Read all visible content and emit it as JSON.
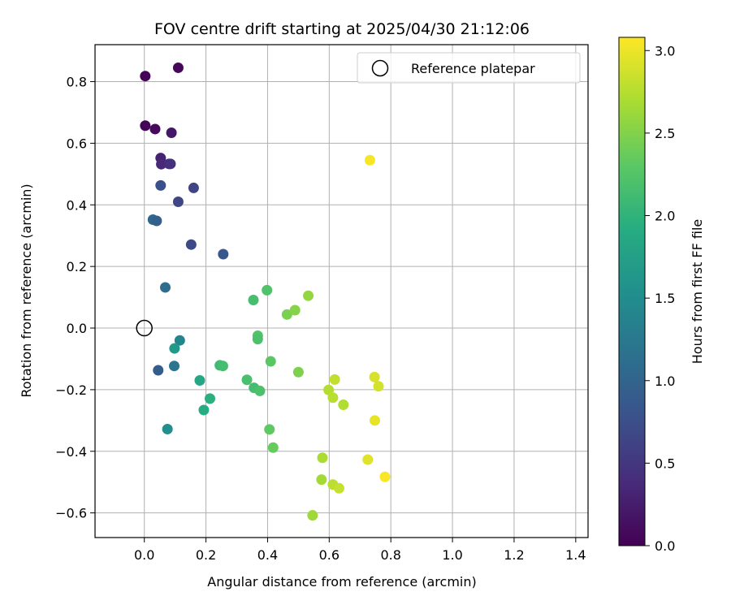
{
  "chart_data": {
    "type": "scatter",
    "title": "FOV centre drift starting at 2025/04/30 21:12:06",
    "xlabel": "Angular distance from reference (arcmin)",
    "ylabel": "Rotation from reference (arcmin)",
    "xlim": [
      -0.16,
      1.44
    ],
    "ylim": [
      -0.68,
      0.92
    ],
    "xticks": [
      0.0,
      0.2,
      0.4,
      0.6,
      0.8,
      1.0,
      1.2,
      1.4
    ],
    "yticks": [
      -0.6,
      -0.4,
      -0.2,
      0.0,
      0.2,
      0.4,
      0.6,
      0.8
    ],
    "xtick_labels": [
      "0.0",
      "0.2",
      "0.4",
      "0.6",
      "0.8",
      "1.0",
      "1.2",
      "1.4"
    ],
    "ytick_labels": [
      "−0.6",
      "−0.4",
      "−0.2",
      "0.0",
      "0.2",
      "0.4",
      "0.6",
      "0.8"
    ],
    "grid": true,
    "colormap": "viridis",
    "colorbar": {
      "label": "Hours from first FF file",
      "range": [
        0.0,
        3.08
      ],
      "ticks": [
        0.0,
        0.5,
        1.0,
        1.5,
        2.0,
        2.5,
        3.0
      ],
      "tick_labels": [
        "0.0",
        "0.5",
        "1.0",
        "1.5",
        "2.0",
        "2.5",
        "3.0"
      ]
    },
    "legend": {
      "entries": [
        "Reference platepar"
      ],
      "placement": "upper right"
    },
    "reference_point": {
      "x": 0.0,
      "y": 0.0,
      "marker": "open-circle",
      "label": "Reference platepar"
    },
    "points": [
      {
        "x": 0.003,
        "y": 0.818,
        "hours": 0.02
      },
      {
        "x": 0.11,
        "y": 0.845,
        "hours": 0.06
      },
      {
        "x": 0.003,
        "y": 0.657,
        "hours": 0.04
      },
      {
        "x": 0.035,
        "y": 0.646,
        "hours": 0.08
      },
      {
        "x": 0.088,
        "y": 0.634,
        "hours": 0.2
      },
      {
        "x": 0.053,
        "y": 0.552,
        "hours": 0.3
      },
      {
        "x": 0.055,
        "y": 0.532,
        "hours": 0.36
      },
      {
        "x": 0.08,
        "y": 0.533,
        "hours": 0.4
      },
      {
        "x": 0.085,
        "y": 0.533,
        "hours": 0.44
      },
      {
        "x": 0.053,
        "y": 0.463,
        "hours": 0.76
      },
      {
        "x": 0.16,
        "y": 0.455,
        "hours": 0.64
      },
      {
        "x": 0.11,
        "y": 0.41,
        "hours": 0.66
      },
      {
        "x": 0.028,
        "y": 0.352,
        "hours": 1.02
      },
      {
        "x": 0.04,
        "y": 0.348,
        "hours": 0.96
      },
      {
        "x": 0.152,
        "y": 0.271,
        "hours": 0.7
      },
      {
        "x": 0.256,
        "y": 0.24,
        "hours": 0.84
      },
      {
        "x": 0.068,
        "y": 0.132,
        "hours": 1.12
      },
      {
        "x": 0.115,
        "y": -0.04,
        "hours": 1.4
      },
      {
        "x": 0.098,
        "y": -0.066,
        "hours": 1.66
      },
      {
        "x": 0.045,
        "y": -0.137,
        "hours": 0.92
      },
      {
        "x": 0.097,
        "y": -0.123,
        "hours": 1.2
      },
      {
        "x": 0.075,
        "y": -0.328,
        "hours": 1.52
      },
      {
        "x": 0.18,
        "y": -0.17,
        "hours": 1.84
      },
      {
        "x": 0.213,
        "y": -0.229,
        "hours": 1.96
      },
      {
        "x": 0.193,
        "y": -0.266,
        "hours": 1.9
      },
      {
        "x": 0.245,
        "y": -0.121,
        "hours": 2.1
      },
      {
        "x": 0.255,
        "y": -0.123,
        "hours": 2.14
      },
      {
        "x": 0.354,
        "y": 0.091,
        "hours": 2.16
      },
      {
        "x": 0.398,
        "y": 0.123,
        "hours": 2.22
      },
      {
        "x": 0.368,
        "y": -0.025,
        "hours": 2.24
      },
      {
        "x": 0.368,
        "y": -0.036,
        "hours": 2.2
      },
      {
        "x": 0.333,
        "y": -0.168,
        "hours": 2.18
      },
      {
        "x": 0.356,
        "y": -0.194,
        "hours": 2.14
      },
      {
        "x": 0.375,
        "y": -0.204,
        "hours": 2.2
      },
      {
        "x": 0.41,
        "y": -0.108,
        "hours": 2.3
      },
      {
        "x": 0.406,
        "y": -0.329,
        "hours": 2.32
      },
      {
        "x": 0.418,
        "y": -0.388,
        "hours": 2.36
      },
      {
        "x": 0.463,
        "y": 0.044,
        "hours": 2.46
      },
      {
        "x": 0.489,
        "y": 0.058,
        "hours": 2.52
      },
      {
        "x": 0.532,
        "y": 0.105,
        "hours": 2.58
      },
      {
        "x": 0.5,
        "y": -0.143,
        "hours": 2.48
      },
      {
        "x": 0.546,
        "y": -0.608,
        "hours": 2.64
      },
      {
        "x": 0.575,
        "y": -0.492,
        "hours": 2.66
      },
      {
        "x": 0.578,
        "y": -0.421,
        "hours": 2.7
      },
      {
        "x": 0.598,
        "y": -0.201,
        "hours": 2.74
      },
      {
        "x": 0.612,
        "y": -0.226,
        "hours": 2.76
      },
      {
        "x": 0.618,
        "y": -0.167,
        "hours": 2.8
      },
      {
        "x": 0.612,
        "y": -0.508,
        "hours": 2.78
      },
      {
        "x": 0.632,
        "y": -0.52,
        "hours": 2.82
      },
      {
        "x": 0.646,
        "y": -0.249,
        "hours": 2.72
      },
      {
        "x": 0.725,
        "y": -0.427,
        "hours": 2.94
      },
      {
        "x": 0.732,
        "y": 0.545,
        "hours": 3.05
      },
      {
        "x": 0.747,
        "y": -0.159,
        "hours": 2.9
      },
      {
        "x": 0.748,
        "y": -0.3,
        "hours": 2.98
      },
      {
        "x": 0.76,
        "y": -0.189,
        "hours": 2.88
      },
      {
        "x": 0.781,
        "y": -0.483,
        "hours": 3.06
      }
    ]
  }
}
